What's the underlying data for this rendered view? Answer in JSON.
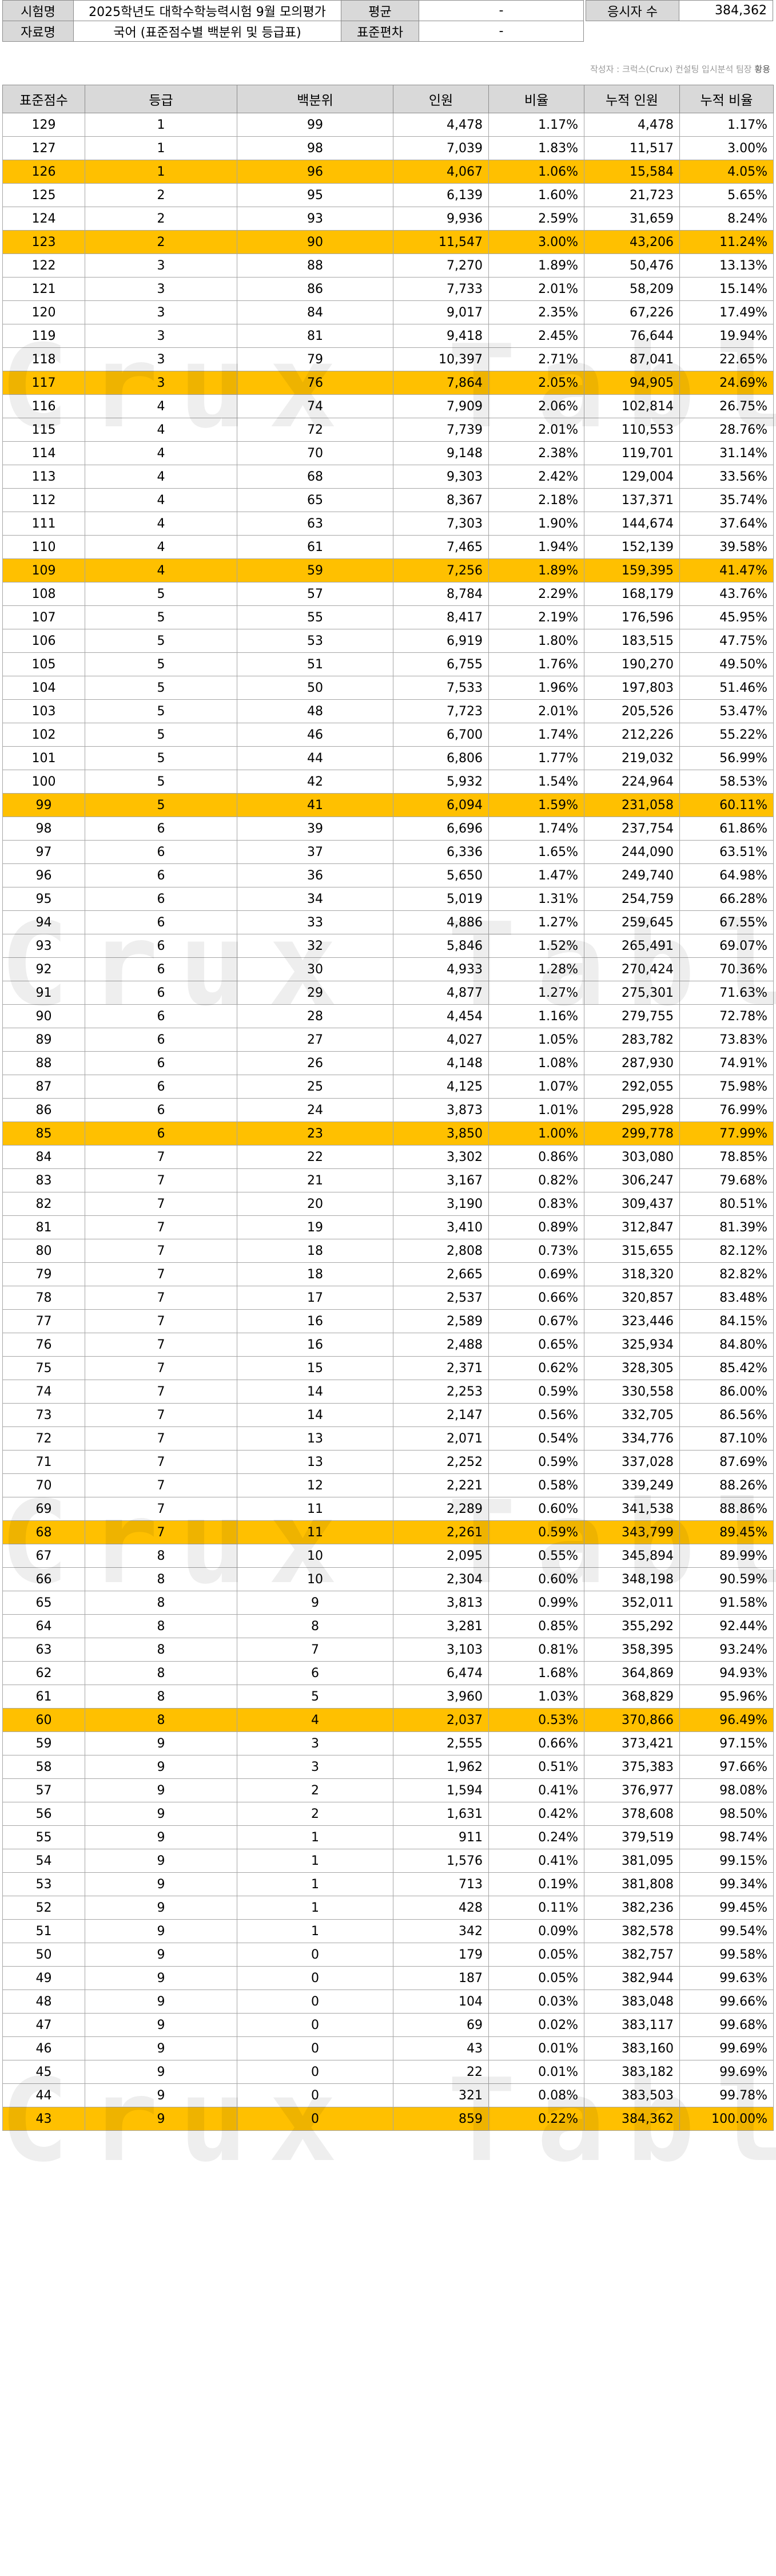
{
  "header": {
    "exam_label": "시험명",
    "exam_name": "2025학년도 대학수학능력시험 9월 모의평가",
    "data_label": "자료명",
    "data_name": "국어 (표준점수별 백분위 및 등급표)",
    "mean_label": "평균",
    "mean_value": "-",
    "sd_label": "표준편차",
    "sd_value": "-",
    "count_label": "응시자 수",
    "count_value": "384,362"
  },
  "author_note": "작성자 : 크럭스(Crux) 컨설팅 입시분석 팀장",
  "author_name": "황용",
  "watermark": "Crux Table",
  "columns": [
    "표준점수",
    "등급",
    "백분위",
    "인원",
    "비율",
    "누적 인원",
    "누적 비율"
  ],
  "rows": [
    [
      "129",
      "1",
      "99",
      "4,478",
      "1.17%",
      "4,478",
      "1.17%"
    ],
    [
      "127",
      "1",
      "98",
      "7,039",
      "1.83%",
      "11,517",
      "3.00%"
    ],
    [
      "126",
      "1",
      "96",
      "4,067",
      "1.06%",
      "15,584",
      "4.05%"
    ],
    [
      "125",
      "2",
      "95",
      "6,139",
      "1.60%",
      "21,723",
      "5.65%"
    ],
    [
      "124",
      "2",
      "93",
      "9,936",
      "2.59%",
      "31,659",
      "8.24%"
    ],
    [
      "123",
      "2",
      "90",
      "11,547",
      "3.00%",
      "43,206",
      "11.24%"
    ],
    [
      "122",
      "3",
      "88",
      "7,270",
      "1.89%",
      "50,476",
      "13.13%"
    ],
    [
      "121",
      "3",
      "86",
      "7,733",
      "2.01%",
      "58,209",
      "15.14%"
    ],
    [
      "120",
      "3",
      "84",
      "9,017",
      "2.35%",
      "67,226",
      "17.49%"
    ],
    [
      "119",
      "3",
      "81",
      "9,418",
      "2.45%",
      "76,644",
      "19.94%"
    ],
    [
      "118",
      "3",
      "79",
      "10,397",
      "2.71%",
      "87,041",
      "22.65%"
    ],
    [
      "117",
      "3",
      "76",
      "7,864",
      "2.05%",
      "94,905",
      "24.69%"
    ],
    [
      "116",
      "4",
      "74",
      "7,909",
      "2.06%",
      "102,814",
      "26.75%"
    ],
    [
      "115",
      "4",
      "72",
      "7,739",
      "2.01%",
      "110,553",
      "28.76%"
    ],
    [
      "114",
      "4",
      "70",
      "9,148",
      "2.38%",
      "119,701",
      "31.14%"
    ],
    [
      "113",
      "4",
      "68",
      "9,303",
      "2.42%",
      "129,004",
      "33.56%"
    ],
    [
      "112",
      "4",
      "65",
      "8,367",
      "2.18%",
      "137,371",
      "35.74%"
    ],
    [
      "111",
      "4",
      "63",
      "7,303",
      "1.90%",
      "144,674",
      "37.64%"
    ],
    [
      "110",
      "4",
      "61",
      "7,465",
      "1.94%",
      "152,139",
      "39.58%"
    ],
    [
      "109",
      "4",
      "59",
      "7,256",
      "1.89%",
      "159,395",
      "41.47%"
    ],
    [
      "108",
      "5",
      "57",
      "8,784",
      "2.29%",
      "168,179",
      "43.76%"
    ],
    [
      "107",
      "5",
      "55",
      "8,417",
      "2.19%",
      "176,596",
      "45.95%"
    ],
    [
      "106",
      "5",
      "53",
      "6,919",
      "1.80%",
      "183,515",
      "47.75%"
    ],
    [
      "105",
      "5",
      "51",
      "6,755",
      "1.76%",
      "190,270",
      "49.50%"
    ],
    [
      "104",
      "5",
      "50",
      "7,533",
      "1.96%",
      "197,803",
      "51.46%"
    ],
    [
      "103",
      "5",
      "48",
      "7,723",
      "2.01%",
      "205,526",
      "53.47%"
    ],
    [
      "102",
      "5",
      "46",
      "6,700",
      "1.74%",
      "212,226",
      "55.22%"
    ],
    [
      "101",
      "5",
      "44",
      "6,806",
      "1.77%",
      "219,032",
      "56.99%"
    ],
    [
      "100",
      "5",
      "42",
      "5,932",
      "1.54%",
      "224,964",
      "58.53%"
    ],
    [
      "99",
      "5",
      "41",
      "6,094",
      "1.59%",
      "231,058",
      "60.11%"
    ],
    [
      "98",
      "6",
      "39",
      "6,696",
      "1.74%",
      "237,754",
      "61.86%"
    ],
    [
      "97",
      "6",
      "37",
      "6,336",
      "1.65%",
      "244,090",
      "63.51%"
    ],
    [
      "96",
      "6",
      "36",
      "5,650",
      "1.47%",
      "249,740",
      "64.98%"
    ],
    [
      "95",
      "6",
      "34",
      "5,019",
      "1.31%",
      "254,759",
      "66.28%"
    ],
    [
      "94",
      "6",
      "33",
      "4,886",
      "1.27%",
      "259,645",
      "67.55%"
    ],
    [
      "93",
      "6",
      "32",
      "5,846",
      "1.52%",
      "265,491",
      "69.07%"
    ],
    [
      "92",
      "6",
      "30",
      "4,933",
      "1.28%",
      "270,424",
      "70.36%"
    ],
    [
      "91",
      "6",
      "29",
      "4,877",
      "1.27%",
      "275,301",
      "71.63%"
    ],
    [
      "90",
      "6",
      "28",
      "4,454",
      "1.16%",
      "279,755",
      "72.78%"
    ],
    [
      "89",
      "6",
      "27",
      "4,027",
      "1.05%",
      "283,782",
      "73.83%"
    ],
    [
      "88",
      "6",
      "26",
      "4,148",
      "1.08%",
      "287,930",
      "74.91%"
    ],
    [
      "87",
      "6",
      "25",
      "4,125",
      "1.07%",
      "292,055",
      "75.98%"
    ],
    [
      "86",
      "6",
      "24",
      "3,873",
      "1.01%",
      "295,928",
      "76.99%"
    ],
    [
      "85",
      "6",
      "23",
      "3,850",
      "1.00%",
      "299,778",
      "77.99%"
    ],
    [
      "84",
      "7",
      "22",
      "3,302",
      "0.86%",
      "303,080",
      "78.85%"
    ],
    [
      "83",
      "7",
      "21",
      "3,167",
      "0.82%",
      "306,247",
      "79.68%"
    ],
    [
      "82",
      "7",
      "20",
      "3,190",
      "0.83%",
      "309,437",
      "80.51%"
    ],
    [
      "81",
      "7",
      "19",
      "3,410",
      "0.89%",
      "312,847",
      "81.39%"
    ],
    [
      "80",
      "7",
      "18",
      "2,808",
      "0.73%",
      "315,655",
      "82.12%"
    ],
    [
      "79",
      "7",
      "18",
      "2,665",
      "0.69%",
      "318,320",
      "82.82%"
    ],
    [
      "78",
      "7",
      "17",
      "2,537",
      "0.66%",
      "320,857",
      "83.48%"
    ],
    [
      "77",
      "7",
      "16",
      "2,589",
      "0.67%",
      "323,446",
      "84.15%"
    ],
    [
      "76",
      "7",
      "16",
      "2,488",
      "0.65%",
      "325,934",
      "84.80%"
    ],
    [
      "75",
      "7",
      "15",
      "2,371",
      "0.62%",
      "328,305",
      "85.42%"
    ],
    [
      "74",
      "7",
      "14",
      "2,253",
      "0.59%",
      "330,558",
      "86.00%"
    ],
    [
      "73",
      "7",
      "14",
      "2,147",
      "0.56%",
      "332,705",
      "86.56%"
    ],
    [
      "72",
      "7",
      "13",
      "2,071",
      "0.54%",
      "334,776",
      "87.10%"
    ],
    [
      "71",
      "7",
      "13",
      "2,252",
      "0.59%",
      "337,028",
      "87.69%"
    ],
    [
      "70",
      "7",
      "12",
      "2,221",
      "0.58%",
      "339,249",
      "88.26%"
    ],
    [
      "69",
      "7",
      "11",
      "2,289",
      "0.60%",
      "341,538",
      "88.86%"
    ],
    [
      "68",
      "7",
      "11",
      "2,261",
      "0.59%",
      "343,799",
      "89.45%"
    ],
    [
      "67",
      "8",
      "10",
      "2,095",
      "0.55%",
      "345,894",
      "89.99%"
    ],
    [
      "66",
      "8",
      "10",
      "2,304",
      "0.60%",
      "348,198",
      "90.59%"
    ],
    [
      "65",
      "8",
      "9",
      "3,813",
      "0.99%",
      "352,011",
      "91.58%"
    ],
    [
      "64",
      "8",
      "8",
      "3,281",
      "0.85%",
      "355,292",
      "92.44%"
    ],
    [
      "63",
      "8",
      "7",
      "3,103",
      "0.81%",
      "358,395",
      "93.24%"
    ],
    [
      "62",
      "8",
      "6",
      "6,474",
      "1.68%",
      "364,869",
      "94.93%"
    ],
    [
      "61",
      "8",
      "5",
      "3,960",
      "1.03%",
      "368,829",
      "95.96%"
    ],
    [
      "60",
      "8",
      "4",
      "2,037",
      "0.53%",
      "370,866",
      "96.49%"
    ],
    [
      "59",
      "9",
      "3",
      "2,555",
      "0.66%",
      "373,421",
      "97.15%"
    ],
    [
      "58",
      "9",
      "3",
      "1,962",
      "0.51%",
      "375,383",
      "97.66%"
    ],
    [
      "57",
      "9",
      "2",
      "1,594",
      "0.41%",
      "376,977",
      "98.08%"
    ],
    [
      "56",
      "9",
      "2",
      "1,631",
      "0.42%",
      "378,608",
      "98.50%"
    ],
    [
      "55",
      "9",
      "1",
      "911",
      "0.24%",
      "379,519",
      "98.74%"
    ],
    [
      "54",
      "9",
      "1",
      "1,576",
      "0.41%",
      "381,095",
      "99.15%"
    ],
    [
      "53",
      "9",
      "1",
      "713",
      "0.19%",
      "381,808",
      "99.34%"
    ],
    [
      "52",
      "9",
      "1",
      "428",
      "0.11%",
      "382,236",
      "99.45%"
    ],
    [
      "51",
      "9",
      "1",
      "342",
      "0.09%",
      "382,578",
      "99.54%"
    ],
    [
      "50",
      "9",
      "0",
      "179",
      "0.05%",
      "382,757",
      "99.58%"
    ],
    [
      "49",
      "9",
      "0",
      "187",
      "0.05%",
      "382,944",
      "99.63%"
    ],
    [
      "48",
      "9",
      "0",
      "104",
      "0.03%",
      "383,048",
      "99.66%"
    ],
    [
      "47",
      "9",
      "0",
      "69",
      "0.02%",
      "383,117",
      "99.68%"
    ],
    [
      "46",
      "9",
      "0",
      "43",
      "0.01%",
      "383,160",
      "99.69%"
    ],
    [
      "45",
      "9",
      "0",
      "22",
      "0.01%",
      "383,182",
      "99.69%"
    ],
    [
      "44",
      "9",
      "0",
      "321",
      "0.08%",
      "383,503",
      "99.78%"
    ],
    [
      "43",
      "9",
      "0",
      "859",
      "0.22%",
      "384,362",
      "100.00%"
    ]
  ],
  "highlighted_scores": [
    "126",
    "123",
    "117",
    "109",
    "99",
    "85",
    "68",
    "60",
    "43"
  ],
  "highlight_color": "#ffc000",
  "header_fill": "#d9d9d9"
}
